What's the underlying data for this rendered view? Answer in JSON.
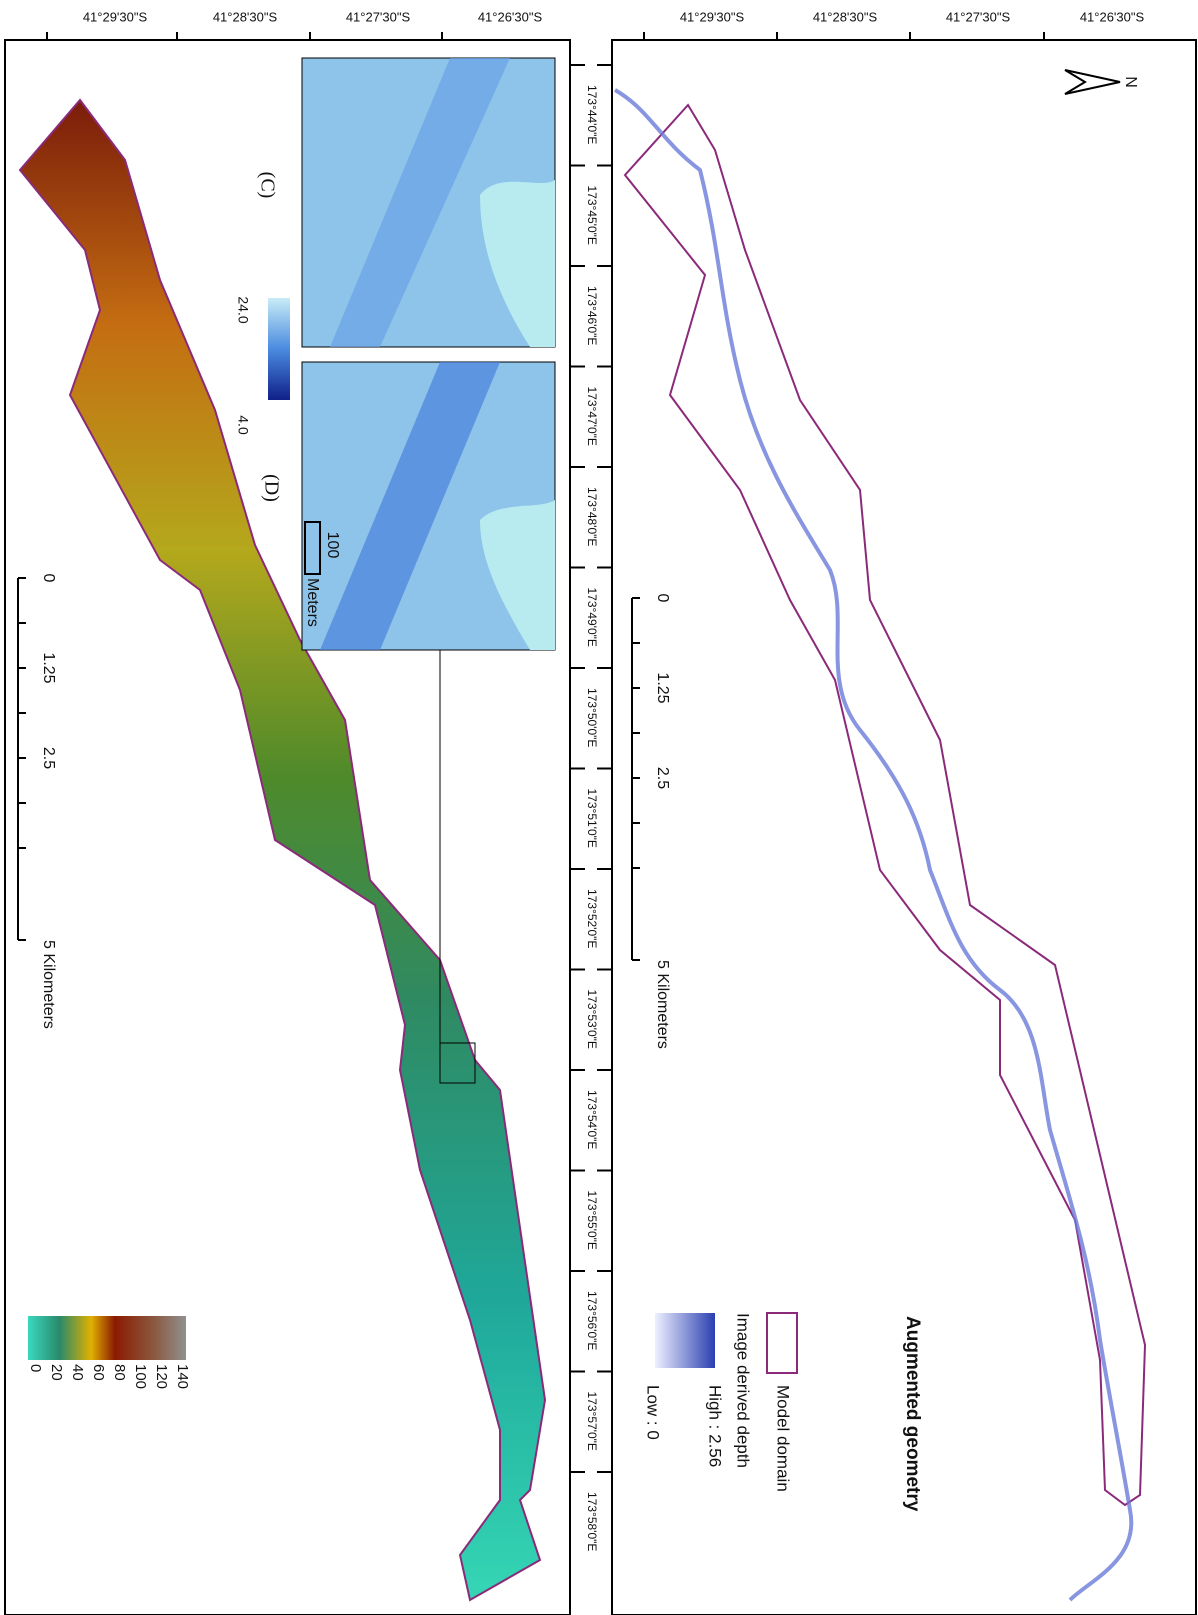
{
  "latitude_labels": [
    "41°29'30\"S",
    "41°28'30\"S",
    "41°27'30\"S",
    "41°26'30\"S"
  ],
  "longitude_labels": [
    "173°44'0\"E",
    "173°45'0\"E",
    "173°46'0\"E",
    "173°47'0\"E",
    "173°48'0\"E",
    "173°49'0\"E",
    "173°50'0\"E",
    "173°51'0\"E",
    "173°52'0\"E",
    "173°53'0\"E",
    "173°54'0\"E",
    "173°55'0\"E",
    "173°56'0\"E",
    "173°57'0\"E",
    "173°58'0\"E"
  ],
  "scale_bar": {
    "labels": [
      "0",
      "1.25",
      "2.5",
      "5 Kilometers"
    ]
  },
  "depth_map": {
    "legend": {
      "domain": "Model domain",
      "title": "Image derived depth",
      "high": "High : 2.56",
      "low": "Low : 0"
    },
    "north": "N"
  },
  "geometry_map": {
    "legend": {
      "title": "Augmented geometry",
      "labels": [
        "140",
        "120",
        "100",
        "80",
        "60",
        "40",
        "20",
        "0"
      ]
    },
    "inset": {
      "c_label": "(C)",
      "d_label": "(D)",
      "colorbar_high": "24.0",
      "colorbar_low": "4.0",
      "scale_value": "100",
      "scale_unit": "Meters"
    }
  }
}
